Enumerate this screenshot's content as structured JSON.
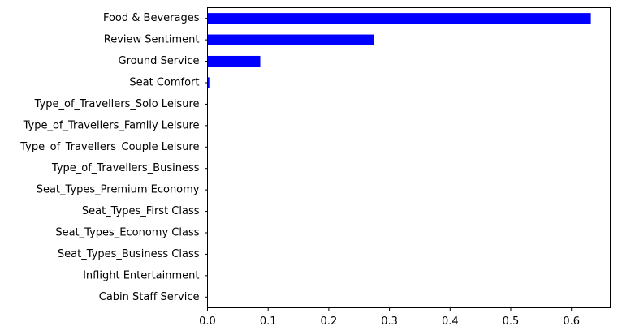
{
  "chart_data": {
    "type": "bar",
    "orientation": "horizontal",
    "title": "",
    "xlabel": "",
    "ylabel": "",
    "categories": [
      "Cabin Staff Service",
      "Inflight Entertainment",
      "Seat_Types_Business Class",
      "Seat_Types_Economy Class",
      "Seat_Types_First Class",
      "Seat_Types_Premium Economy",
      "Type_of_Travellers_Business",
      "Type_of_Travellers_Couple Leisure",
      "Type_of_Travellers_Family Leisure",
      "Type_of_Travellers_Solo Leisure",
      "Seat Comfort",
      "Ground Service",
      "Review Sentiment",
      "Food & Beverages"
    ],
    "values": [
      0,
      0,
      0,
      0,
      0,
      0,
      0,
      0,
      0,
      0,
      0.003,
      0.087,
      0.275,
      0.632
    ],
    "xlim": [
      0,
      0.664
    ],
    "xticks": [
      0.0,
      0.1,
      0.2,
      0.3,
      0.4,
      0.5,
      0.6
    ],
    "xtick_labels": [
      "0.0",
      "0.1",
      "0.2",
      "0.3",
      "0.4",
      "0.5",
      "0.6"
    ],
    "bar_color": "#0000ff",
    "grid": false,
    "legend": "none"
  }
}
